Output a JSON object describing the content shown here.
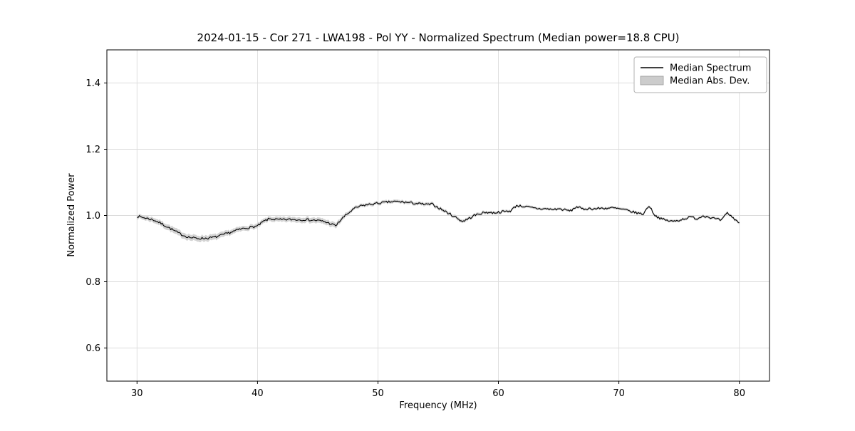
{
  "chart_data": {
    "type": "line",
    "title": "2024-01-15 - Cor 271 - LWA198 - Pol YY - Normalized Spectrum (Median power=18.8 CPU)",
    "xlabel": "Frequency (MHz)",
    "ylabel": "Normalized Power",
    "xlim": [
      27.5,
      82.5
    ],
    "ylim": [
      0.5,
      1.5
    ],
    "xticks": [
      30,
      40,
      50,
      60,
      70,
      80
    ],
    "xticklabels": [
      "30",
      "40",
      "50",
      "60",
      "70",
      "80"
    ],
    "yticks": [
      0.6,
      0.8,
      1.0,
      1.2,
      1.4
    ],
    "yticklabels": [
      "0.6",
      "0.8",
      "1.0",
      "1.2",
      "1.4"
    ],
    "grid": true,
    "legend_position": "upper right",
    "x_range": [
      30,
      80
    ],
    "sample_step_mhz": 0.1,
    "series": [
      {
        "name": "Median Spectrum",
        "type": "line",
        "color": "#000000",
        "noise_amplitude": 0.0035,
        "noise_seed": 7,
        "anchors_x": [
          30,
          30.5,
          31,
          31.5,
          32,
          32.5,
          33,
          33.5,
          34,
          34.5,
          35,
          35.5,
          36,
          36.5,
          37,
          37.5,
          38,
          38.5,
          39,
          39.5,
          40,
          40.5,
          41,
          41.5,
          42,
          42.5,
          43,
          43.5,
          44,
          44.5,
          45,
          45.5,
          46,
          46.5,
          47,
          47.5,
          48,
          48.5,
          49,
          49.5,
          50,
          50.5,
          51,
          51.5,
          52,
          52.5,
          53,
          53.5,
          54,
          54.5,
          55,
          55.5,
          56,
          56.5,
          57,
          57.5,
          58,
          58.5,
          59,
          59.5,
          60,
          60.5,
          61,
          61.5,
          62,
          62.5,
          63,
          63.5,
          64,
          64.5,
          65,
          65.5,
          66,
          66.5,
          67,
          67.5,
          68,
          68.5,
          69,
          69.5,
          70,
          70.5,
          71,
          71.5,
          72,
          72.5,
          73,
          73.5,
          74,
          74.5,
          75,
          75.5,
          76,
          76.5,
          77,
          77.5,
          78,
          78.5,
          79,
          79.5,
          80
        ],
        "anchors_y": [
          0.998,
          0.994,
          0.99,
          0.985,
          0.976,
          0.966,
          0.956,
          0.946,
          0.938,
          0.933,
          0.931,
          0.931,
          0.932,
          0.935,
          0.94,
          0.946,
          0.952,
          0.958,
          0.962,
          0.965,
          0.968,
          0.982,
          0.99,
          0.988,
          0.987,
          0.988,
          0.988,
          0.987,
          0.988,
          0.986,
          0.985,
          0.982,
          0.976,
          0.969,
          0.99,
          1.006,
          1.02,
          1.028,
          1.032,
          1.034,
          1.037,
          1.039,
          1.041,
          1.042,
          1.041,
          1.039,
          1.037,
          1.035,
          1.033,
          1.034,
          1.024,
          1.014,
          1.004,
          0.994,
          0.982,
          0.99,
          1.0,
          1.006,
          1.01,
          1.008,
          1.01,
          1.012,
          1.014,
          1.03,
          1.028,
          1.025,
          1.022,
          1.02,
          1.02,
          1.018,
          1.02,
          1.017,
          1.014,
          1.027,
          1.019,
          1.021,
          1.02,
          1.022,
          1.022,
          1.023,
          1.02,
          1.017,
          1.012,
          1.008,
          1.004,
          1.03,
          1.0,
          0.99,
          0.985,
          0.982,
          0.986,
          0.991,
          0.996,
          0.99,
          1.0,
          0.995,
          0.99,
          0.985,
          1.008,
          0.992,
          0.978
        ]
      },
      {
        "name": "Median Abs. Dev.",
        "type": "band",
        "color": "#cccccc",
        "opacity": 0.85,
        "mad_x": [
          30,
          33,
          36,
          39,
          41,
          44,
          46.5,
          48,
          52,
          57,
          62,
          68,
          74,
          80
        ],
        "mad_y": [
          0.006,
          0.009,
          0.009,
          0.007,
          0.007,
          0.008,
          0.008,
          0.005,
          0.005,
          0.005,
          0.004,
          0.004,
          0.004,
          0.004
        ]
      }
    ]
  }
}
